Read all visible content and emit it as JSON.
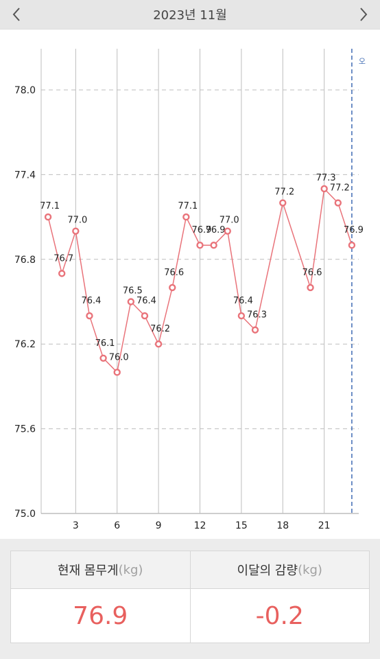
{
  "header": {
    "title": "2023년 11월",
    "prev_icon": "chevron-left-icon",
    "next_icon": "chevron-right-icon"
  },
  "colors": {
    "line": "#e9737a",
    "grid": "#bdbdbd",
    "today_line": "#4a74b8",
    "value_text": "#e8605e"
  },
  "chart_data": {
    "type": "line",
    "title": "",
    "xlabel": "",
    "ylabel": "",
    "x_ticks": [
      3,
      6,
      9,
      12,
      15,
      18,
      21
    ],
    "y_ticks": [
      "75.0",
      "75.6",
      "76.2",
      "76.8",
      "77.4",
      "78.0"
    ],
    "ylim": [
      75.0,
      78.3
    ],
    "xlim": [
      0.5,
      23.5
    ],
    "grid": true,
    "today_marker": {
      "x": 23,
      "label": "오"
    },
    "series": [
      {
        "points": [
          {
            "x": 1,
            "y": 77.1
          },
          {
            "x": 2,
            "y": 76.7
          },
          {
            "x": 3,
            "y": 77.0
          },
          {
            "x": 4,
            "y": 76.4
          },
          {
            "x": 5,
            "y": 76.1
          },
          {
            "x": 6,
            "y": 76.0
          },
          {
            "x": 7,
            "y": 76.5
          },
          {
            "x": 8,
            "y": 76.4
          },
          {
            "x": 9,
            "y": 76.2
          },
          {
            "x": 10,
            "y": 76.6
          },
          {
            "x": 11,
            "y": 77.1
          },
          {
            "x": 12,
            "y": 76.9
          },
          {
            "x": 13,
            "y": 76.9
          },
          {
            "x": 14,
            "y": 77.0
          },
          {
            "x": 15,
            "y": 76.4
          },
          {
            "x": 16,
            "y": 76.3
          },
          {
            "x": 18,
            "y": 77.2
          },
          {
            "x": 20,
            "y": 76.6
          },
          {
            "x": 21,
            "y": 77.3
          },
          {
            "x": 22,
            "y": 77.2
          },
          {
            "x": 23,
            "y": 76.9
          }
        ]
      }
    ]
  },
  "summary": {
    "current_label": "현재 몸무게",
    "current_unit": "(kg)",
    "current_value": "76.9",
    "change_label": "이달의 감량",
    "change_unit": "(kg)",
    "change_value": "-0.2"
  }
}
